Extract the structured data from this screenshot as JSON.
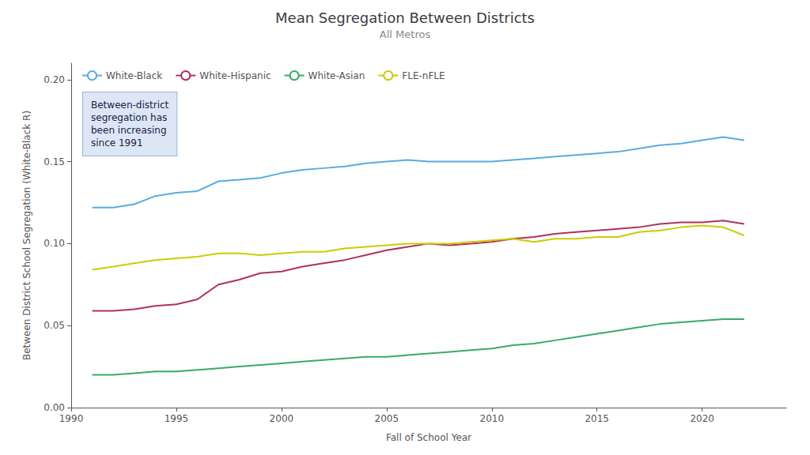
{
  "chart_data": {
    "type": "line",
    "title": "Mean Segregation Between Districts",
    "subtitle": "All Metros",
    "xlabel": "Fall of School Year",
    "ylabel": "Between District School Segregation (White-Black R)",
    "annotation": "Between-district\nsegregation has\nbeen increasing\nsince 1991",
    "x": [
      1991,
      1992,
      1993,
      1994,
      1995,
      1996,
      1997,
      1998,
      1999,
      2000,
      2001,
      2002,
      2003,
      2004,
      2005,
      2006,
      2007,
      2008,
      2009,
      2010,
      2011,
      2012,
      2013,
      2014,
      2015,
      2016,
      2017,
      2018,
      2019,
      2020,
      2021,
      2022
    ],
    "series": [
      {
        "name": "White-Black",
        "color": "#5aacde",
        "values": [
          0.122,
          0.122,
          0.124,
          0.129,
          0.131,
          0.132,
          0.138,
          0.139,
          0.14,
          0.143,
          0.145,
          0.146,
          0.147,
          0.149,
          0.15,
          0.151,
          0.15,
          0.15,
          0.15,
          0.15,
          0.151,
          0.152,
          0.153,
          0.154,
          0.155,
          0.156,
          0.158,
          0.16,
          0.161,
          0.163,
          0.165,
          0.163
        ]
      },
      {
        "name": "White-Hispanic",
        "color": "#b03060",
        "values": [
          0.059,
          0.059,
          0.06,
          0.062,
          0.063,
          0.066,
          0.075,
          0.078,
          0.082,
          0.083,
          0.086,
          0.088,
          0.09,
          0.093,
          0.096,
          0.098,
          0.1,
          0.099,
          0.1,
          0.101,
          0.103,
          0.104,
          0.106,
          0.107,
          0.108,
          0.109,
          0.11,
          0.112,
          0.113,
          0.113,
          0.114,
          0.112
        ]
      },
      {
        "name": "White-Asian",
        "color": "#3aaa6a",
        "values": [
          0.02,
          0.02,
          0.021,
          0.022,
          0.022,
          0.023,
          0.024,
          0.025,
          0.026,
          0.027,
          0.028,
          0.029,
          0.03,
          0.031,
          0.031,
          0.032,
          0.033,
          0.034,
          0.035,
          0.036,
          0.038,
          0.039,
          0.041,
          0.043,
          0.045,
          0.047,
          0.049,
          0.051,
          0.052,
          0.053,
          0.054,
          0.054
        ]
      },
      {
        "name": "FLE-nFLE",
        "color": "#cccc00",
        "values": [
          0.084,
          0.086,
          0.088,
          0.09,
          0.091,
          0.092,
          0.094,
          0.094,
          0.093,
          0.094,
          0.095,
          0.095,
          0.097,
          0.098,
          0.099,
          0.1,
          0.1,
          0.1,
          0.101,
          0.102,
          0.103,
          0.101,
          0.103,
          0.103,
          0.104,
          0.104,
          0.107,
          0.108,
          0.11,
          0.111,
          0.11,
          0.105
        ]
      }
    ],
    "xlim": [
      1990,
      2024
    ],
    "ylim": [
      0.0,
      0.21
    ],
    "xticks": [
      1990,
      1995,
      2000,
      2005,
      2010,
      2015,
      2020
    ],
    "yticks": [
      {
        "value": 0,
        "label": "0.00"
      },
      0.05,
      {
        "value": 0.1,
        "label": "0.10"
      },
      0.15,
      {
        "value": 0.2,
        "label": "0.20"
      }
    ],
    "grid": false,
    "legend": "upper left"
  }
}
